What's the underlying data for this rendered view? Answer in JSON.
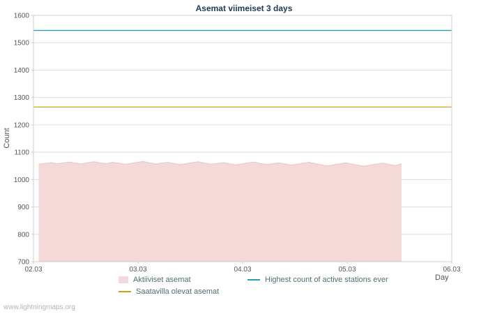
{
  "page": {
    "watermark": "www.lightningmaps.org"
  },
  "chart_data": {
    "type": "area",
    "title": "Asemat viimeiset 3 days",
    "xlabel": "Day",
    "ylabel": "Count",
    "xlim": [
      2.03,
      6.03
    ],
    "ylim": [
      700,
      1600
    ],
    "grid": true,
    "legend_position": "bottom",
    "yticks": [
      700,
      800,
      900,
      1000,
      1100,
      1200,
      1300,
      1400,
      1500,
      1600
    ],
    "xticks": [
      {
        "v": 2.03,
        "label": "02.03"
      },
      {
        "v": 3.03,
        "label": "03.03"
      },
      {
        "v": 4.03,
        "label": "04.03"
      },
      {
        "v": 5.03,
        "label": "05.03"
      },
      {
        "v": 6.03,
        "label": "06.03"
      }
    ],
    "series": [
      {
        "name": "Aktiiviset asemat",
        "type": "area",
        "color": "#f5d8d8",
        "edge": "#eec2c2",
        "x_start": 2.08,
        "x_end": 5.55,
        "values": [
          1056,
          1059,
          1062,
          1058,
          1061,
          1064,
          1060,
          1057,
          1062,
          1065,
          1061,
          1058,
          1063,
          1060,
          1056,
          1059,
          1063,
          1066,
          1061,
          1057,
          1060,
          1063,
          1059,
          1055,
          1058,
          1062,
          1065,
          1060,
          1056,
          1059,
          1062,
          1058,
          1054,
          1057,
          1061,
          1064,
          1059,
          1055,
          1058,
          1061,
          1057,
          1053,
          1056,
          1060,
          1063,
          1058,
          1054,
          1050,
          1054,
          1058,
          1061,
          1056,
          1052,
          1049,
          1053,
          1057,
          1060,
          1055,
          1051,
          1058
        ]
      },
      {
        "name": "Highest count of active stations ever",
        "type": "hline",
        "color": "#24a3ae",
        "value": 1545
      },
      {
        "name": "Saatavilla olevat asemat",
        "type": "hline",
        "color": "#d4a017",
        "value": 1265
      }
    ]
  },
  "legend": {
    "items": [
      {
        "label": "Aktiiviset asemat",
        "swatch": "area",
        "color": "#f5d8d8"
      },
      {
        "label": "Highest count of active stations ever",
        "swatch": "line",
        "color": "#24a3ae"
      },
      {
        "label": "Saatavilla olevat asemat",
        "swatch": "line",
        "color": "#d4a017"
      }
    ]
  },
  "colors": {
    "grid": "#dddddd",
    "border": "#cccccc",
    "tick_text": "#555555",
    "axis_label": "#555555",
    "title": "#1f3a54",
    "legend_text": "#4f6d75",
    "watermark": "#b4b4b4"
  }
}
